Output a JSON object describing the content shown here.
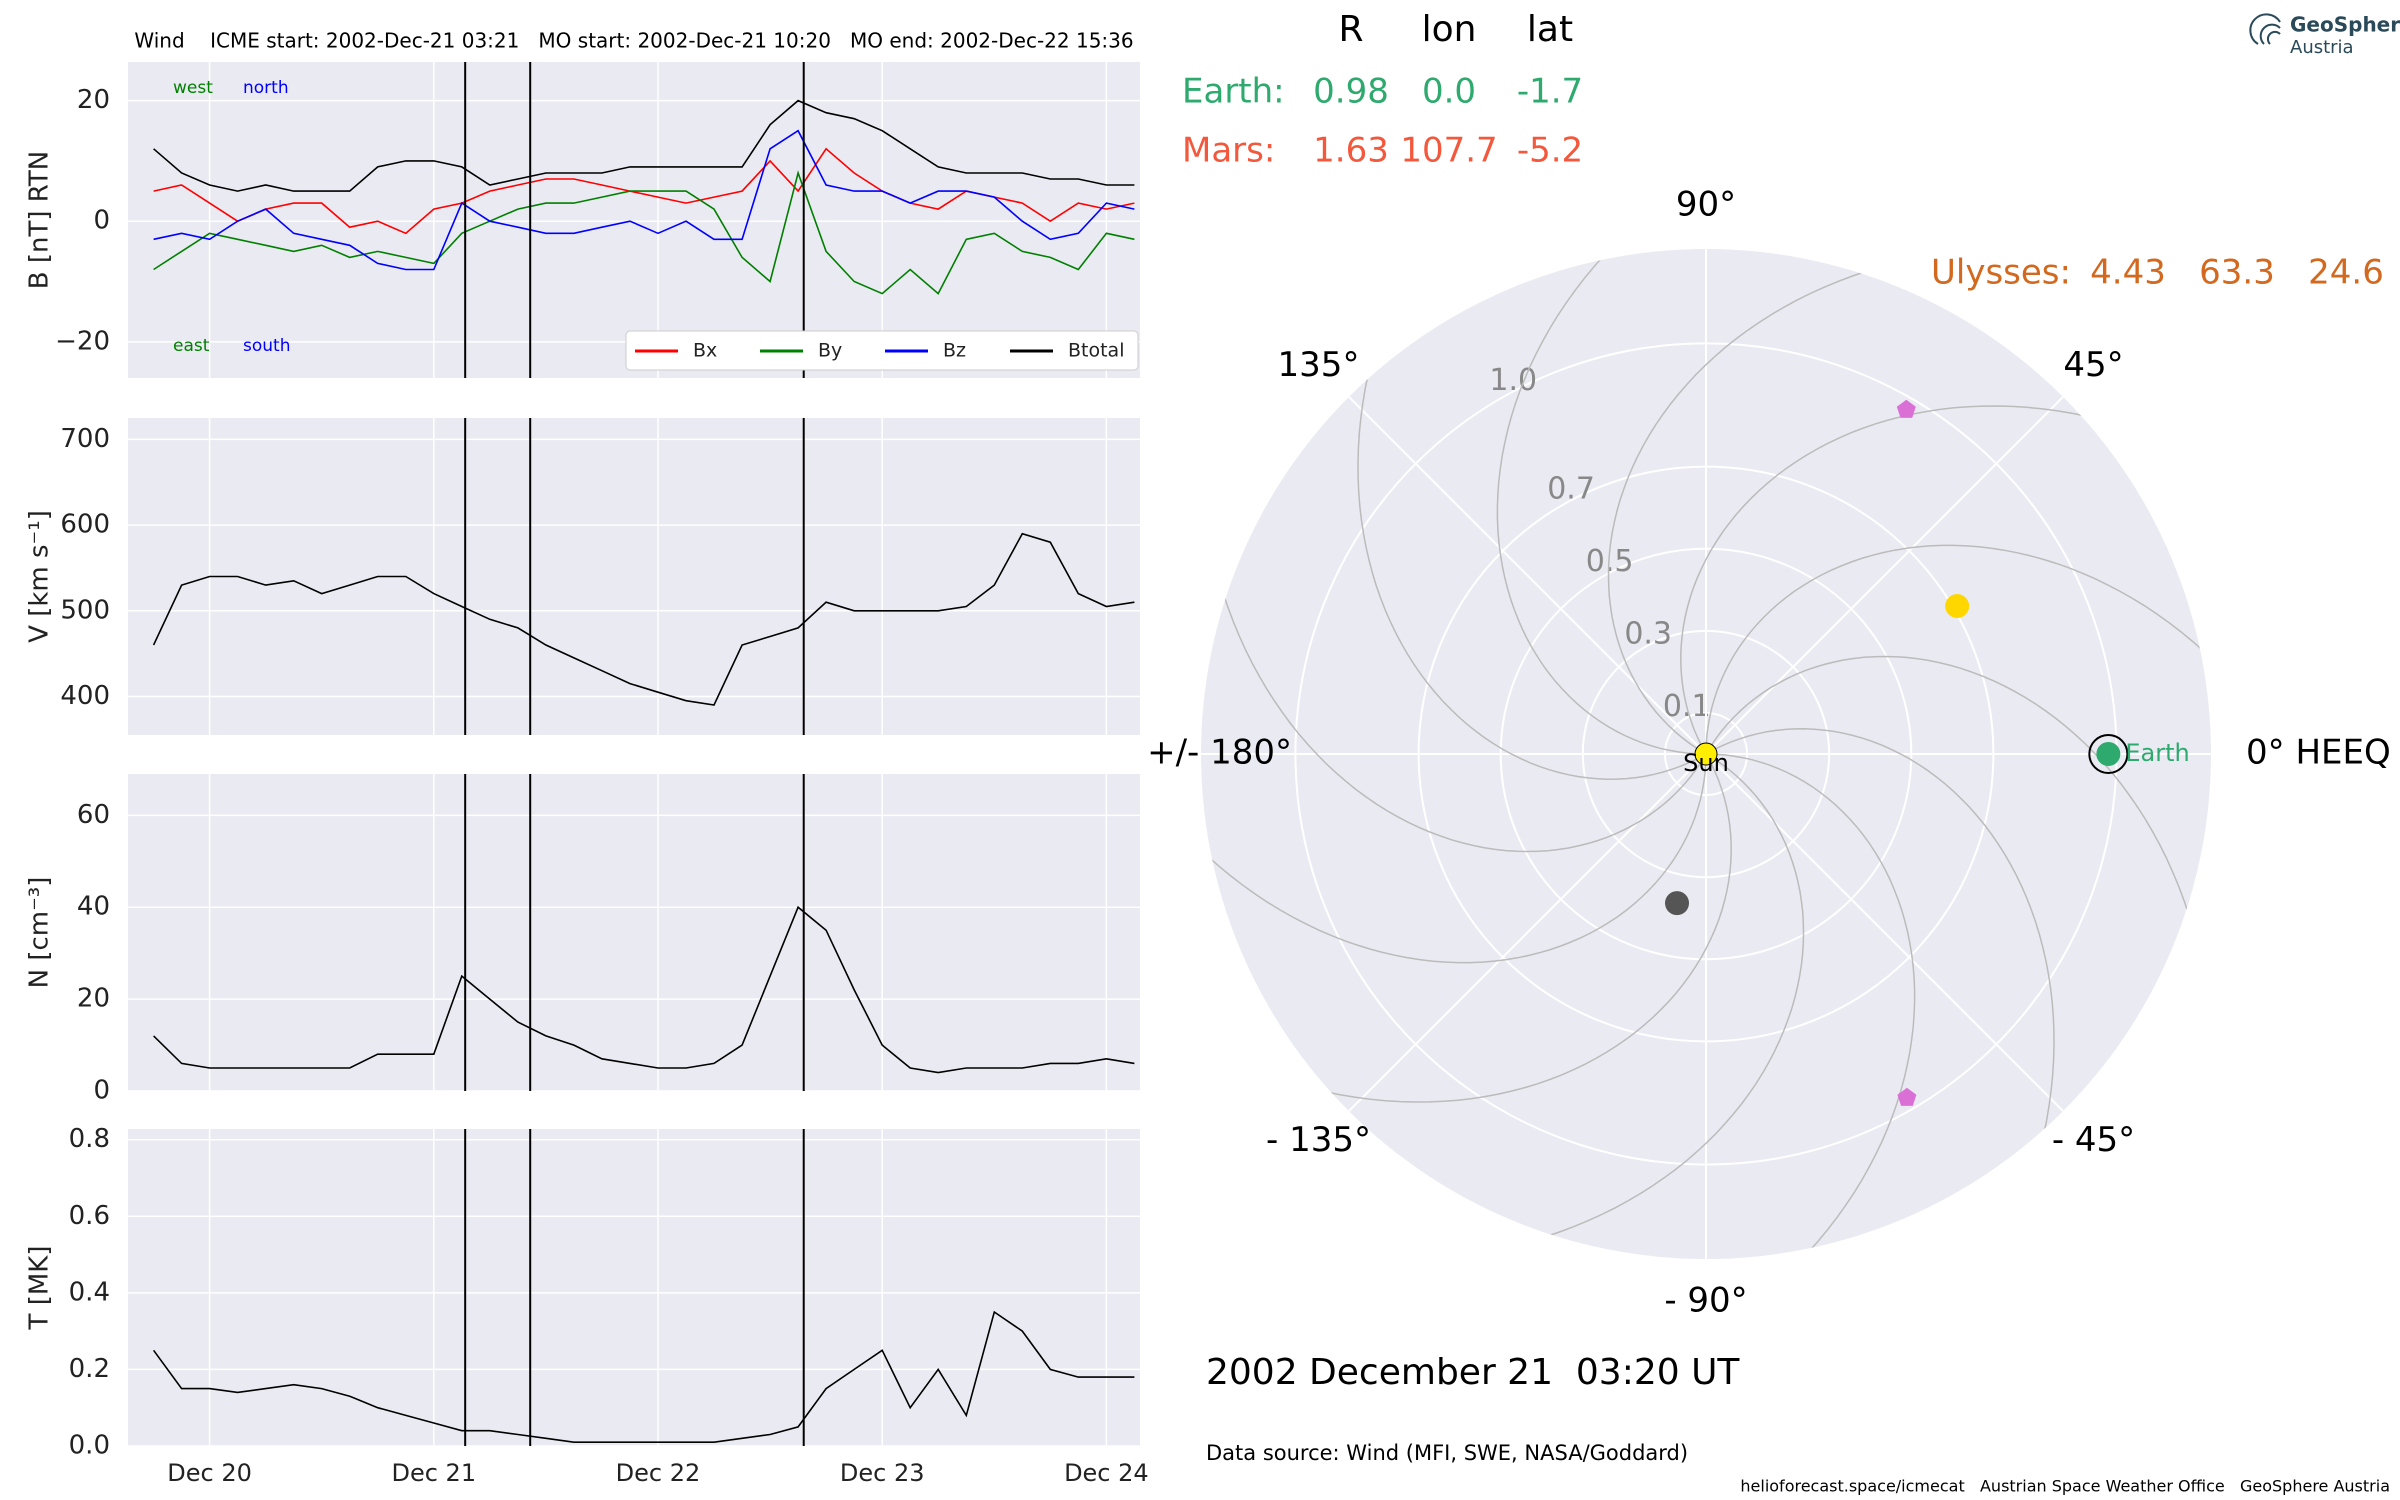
{
  "header": {
    "logo": [
      "GeoSphere",
      "Austria"
    ],
    "date": "2002 December 21  03:20 UT",
    "source": "Data source: Wind (MFI, SWE, NASA/Goddard)",
    "footer": "helioforecast.space/icmecat   Austrian Space Weather Office   GeoSphere Austria"
  },
  "chart_data": [
    {
      "type": "line",
      "title": "Wind    ICME start: 2002-Dec-21 03:21   MO start: 2002-Dec-21 10:20   MO end: 2002-Dec-22 15:36",
      "ylabel": "B [nT] RTN",
      "markers": [
        21.14,
        21.43,
        22.65
      ],
      "annotations": [
        {
          "text": "west",
          "color": "#008000",
          "corner": "top"
        },
        {
          "text": "north",
          "color": "#0000ff",
          "corner": "top"
        },
        {
          "text": "east",
          "color": "#008000",
          "corner": "bottom"
        },
        {
          "text": "south",
          "color": "#0000ff",
          "corner": "bottom"
        }
      ],
      "x": [
        19.75,
        19.875,
        20,
        20.125,
        20.25,
        20.375,
        20.5,
        20.625,
        20.75,
        20.875,
        21,
        21.125,
        21.25,
        21.375,
        21.5,
        21.625,
        21.75,
        21.875,
        22,
        22.125,
        22.25,
        22.375,
        22.5,
        22.625,
        22.75,
        22.875,
        23,
        23.125,
        23.25,
        23.375,
        23.5,
        23.625,
        23.75,
        23.875,
        24,
        24.125
      ],
      "series": [
        {
          "name": "Bx",
          "color": "#ff0000",
          "values": [
            5,
            6,
            3,
            0,
            2,
            3,
            3,
            -1,
            0,
            -2,
            2,
            3,
            5,
            6,
            7,
            7,
            6,
            5,
            4,
            3,
            4,
            5,
            10,
            5,
            12,
            8,
            5,
            3,
            2,
            5,
            4,
            3,
            0,
            3,
            2,
            3
          ]
        },
        {
          "name": "By",
          "color": "#008000",
          "values": [
            -8,
            -5,
            -2,
            -3,
            -4,
            -5,
            -4,
            -6,
            -5,
            -6,
            -7,
            -2,
            0,
            2,
            3,
            3,
            4,
            5,
            5,
            5,
            2,
            -6,
            -10,
            8,
            -5,
            -10,
            -12,
            -8,
            -12,
            -3,
            -2,
            -5,
            -6,
            -8,
            -2,
            -3
          ]
        },
        {
          "name": "Bz",
          "color": "#0000ff",
          "values": [
            -3,
            -2,
            -3,
            0,
            2,
            -2,
            -3,
            -4,
            -7,
            -8,
            -8,
            3,
            0,
            -1,
            -2,
            -2,
            -1,
            0,
            -2,
            0,
            -3,
            -3,
            12,
            15,
            6,
            5,
            5,
            3,
            5,
            5,
            4,
            0,
            -3,
            -2,
            3,
            2
          ]
        },
        {
          "name": "Btotal",
          "color": "#000000",
          "values": [
            12,
            8,
            6,
            5,
            6,
            5,
            5,
            5,
            9,
            10,
            10,
            9,
            6,
            7,
            8,
            8,
            8,
            9,
            9,
            9,
            9,
            9,
            16,
            20,
            18,
            17,
            15,
            12,
            9,
            8,
            8,
            8,
            7,
            7,
            6,
            6
          ]
        }
      ],
      "xlim": [
        19.636,
        24.15
      ],
      "ylim": [
        -26,
        26.4
      ],
      "yticks": [
        {
          "value": -20,
          "label": "−20"
        },
        0,
        20
      ],
      "grid": true
    },
    {
      "type": "line",
      "ylabel": "V [km s⁻¹]",
      "x": [
        19.75,
        19.875,
        20,
        20.125,
        20.25,
        20.375,
        20.5,
        20.625,
        20.75,
        20.875,
        21,
        21.125,
        21.25,
        21.375,
        21.5,
        21.625,
        21.75,
        21.875,
        22,
        22.125,
        22.25,
        22.375,
        22.5,
        22.625,
        22.75,
        22.875,
        23,
        23.125,
        23.25,
        23.375,
        23.5,
        23.625,
        23.75,
        23.875,
        24,
        24.125
      ],
      "series": [
        {
          "name": "V",
          "color": "#000000",
          "values": [
            460,
            530,
            540,
            540,
            530,
            535,
            520,
            530,
            540,
            540,
            520,
            505,
            490,
            480,
            460,
            445,
            430,
            415,
            405,
            395,
            390,
            460,
            470,
            480,
            510,
            500,
            500,
            500,
            500,
            505,
            530,
            590,
            580,
            520,
            505,
            510
          ]
        }
      ],
      "xlim": [
        19.636,
        24.15
      ],
      "ylim": [
        355,
        725
      ],
      "yticks": [
        400,
        500,
        600,
        700
      ],
      "grid": true
    },
    {
      "type": "line",
      "ylabel": "N [cm⁻³]",
      "x": [
        19.75,
        19.875,
        20,
        20.125,
        20.25,
        20.375,
        20.5,
        20.625,
        20.75,
        20.875,
        21,
        21.125,
        21.25,
        21.375,
        21.5,
        21.625,
        21.75,
        21.875,
        22,
        22.125,
        22.25,
        22.375,
        22.5,
        22.625,
        22.75,
        22.875,
        23,
        23.125,
        23.25,
        23.375,
        23.5,
        23.625,
        23.75,
        23.875,
        24,
        24.125
      ],
      "series": [
        {
          "name": "N",
          "color": "#000000",
          "values": [
            12,
            6,
            5,
            5,
            5,
            5,
            5,
            5,
            8,
            8,
            8,
            25,
            20,
            15,
            12,
            10,
            7,
            6,
            5,
            5,
            6,
            10,
            25,
            40,
            35,
            22,
            10,
            5,
            4,
            5,
            5,
            5,
            6,
            6,
            7,
            6
          ]
        }
      ],
      "xlim": [
        19.636,
        24.15
      ],
      "ylim": [
        0,
        69
      ],
      "yticks": [
        0,
        20,
        40,
        60
      ],
      "grid": true
    },
    {
      "type": "line",
      "ylabel": "T [MK]",
      "x": [
        19.75,
        19.875,
        20,
        20.125,
        20.25,
        20.375,
        20.5,
        20.625,
        20.75,
        20.875,
        21,
        21.125,
        21.25,
        21.375,
        21.5,
        21.625,
        21.75,
        21.875,
        22,
        22.125,
        22.25,
        22.375,
        22.5,
        22.625,
        22.75,
        22.875,
        23,
        23.125,
        23.25,
        23.375,
        23.5,
        23.625,
        23.75,
        23.875,
        24,
        24.125
      ],
      "series": [
        {
          "name": "T",
          "color": "#000000",
          "values": [
            0.25,
            0.15,
            0.15,
            0.14,
            0.15,
            0.16,
            0.15,
            0.13,
            0.1,
            0.08,
            0.06,
            0.04,
            0.04,
            0.03,
            0.02,
            0.01,
            0.01,
            0.01,
            0.01,
            0.01,
            0.01,
            0.02,
            0.03,
            0.05,
            0.15,
            0.2,
            0.25,
            0.1,
            0.2,
            0.08,
            0.35,
            0.3,
            0.2,
            0.18,
            0.18,
            0.18
          ]
        }
      ],
      "xlim": [
        19.636,
        24.15
      ],
      "ylim": [
        0,
        0.828
      ],
      "yticks": [
        {
          "value": 0,
          "label": "0.0"
        },
        0.2,
        0.4,
        0.6,
        0.8
      ],
      "grid": true,
      "xticks": [
        {
          "value": 20,
          "label": "Dec 20"
        },
        {
          "value": 21,
          "label": "Dec 21"
        },
        {
          "value": 22,
          "label": "Dec 22"
        },
        {
          "value": 23,
          "label": "Dec 23"
        },
        {
          "value": 24,
          "label": "Dec 24"
        }
      ]
    },
    {
      "type": "polar",
      "rlim": [
        0,
        1.23
      ],
      "rticks": [
        0.1,
        0.3,
        0.5,
        0.7,
        {
          "value": 1,
          "label": "1.0"
        }
      ],
      "thetaticks": [
        {
          "value": 0,
          "label": "0° HEEQ"
        },
        {
          "value": 45,
          "label": "45°"
        },
        {
          "value": 90,
          "label": "90°"
        },
        {
          "value": 135,
          "label": "135°"
        },
        {
          "value": 180,
          "label": "+/- 180°"
        },
        {
          "value": -135,
          "label": "- 135°"
        },
        {
          "value": -90,
          "label": "- 90°"
        },
        {
          "value": -45,
          "label": "- 45°"
        }
      ],
      "points": [
        {
          "r": 0.37,
          "lon": -101,
          "color": "#555555"
        },
        {
          "r": 0.71,
          "lon": 30.5,
          "color": "#ffd700"
        },
        {
          "r": 0.97,
          "lon": 59.8,
          "color": "#da70d6",
          "marker": "pentagon"
        },
        {
          "r": 0.97,
          "lon": -59.7,
          "color": "#da70d6",
          "marker": "pentagon"
        },
        {
          "name": "Earth",
          "r": 0.98,
          "lon": 0,
          "color": "#2eaa6e",
          "ring": true
        },
        {
          "name": "Sun",
          "r": 0,
          "lon": 0,
          "color": "#ffee00"
        }
      ],
      "table": {
        "columns": [
          "R",
          "lon",
          "lat"
        ],
        "rows": [
          {
            "name": "Earth:",
            "color": "#2eaa6e",
            "cells": [
              "0.98",
              "0.0",
              "-1.7"
            ]
          },
          {
            "name": "Mars:",
            "color": "#f4583c",
            "cells": [
              "1.63",
              "107.7",
              "-5.2"
            ]
          },
          {
            "name": "Ulysses:",
            "color": "#d2691e",
            "cells": [
              "4.43",
              "63.3",
              "24.6"
            ]
          }
        ]
      }
    }
  ]
}
